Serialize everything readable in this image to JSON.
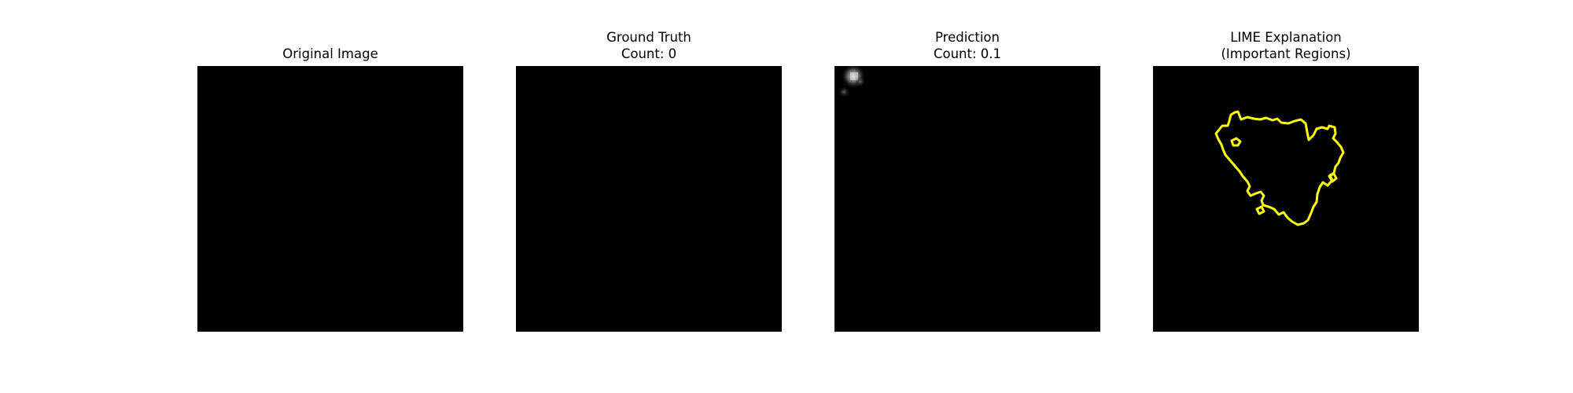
{
  "panels": [
    {
      "title_lines": [
        "Original Image"
      ]
    },
    {
      "title_lines": [
        "Ground Truth",
        "Count: 0"
      ]
    },
    {
      "title_lines": [
        "Prediction",
        "Count: 0.1"
      ]
    },
    {
      "title_lines": [
        "LIME Explanation",
        "(Important Regions)"
      ]
    }
  ],
  "colors": {
    "image_background": "#000000",
    "lime_contour": "#ffff00",
    "prediction_hotspot": "#d8d8d8"
  }
}
